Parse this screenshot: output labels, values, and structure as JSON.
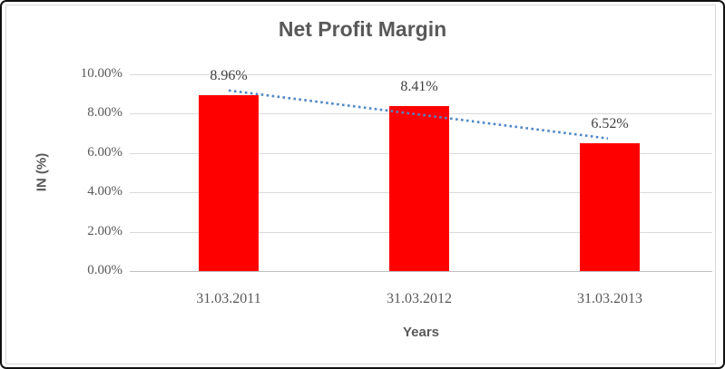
{
  "chart_data": {
    "type": "bar",
    "title": "Net Profit Margin",
    "xlabel": "Years",
    "ylabel": "IN (%)",
    "categories": [
      "31.03.2011",
      "31.03.2012",
      "31.03.2013"
    ],
    "values": [
      8.96,
      8.41,
      6.52
    ],
    "data_labels": [
      "8.96%",
      "8.41%",
      "6.52%"
    ],
    "ylim": [
      0,
      10
    ],
    "ytick_values": [
      0,
      2,
      4,
      6,
      8,
      10
    ],
    "ytick_labels": [
      "0.00%",
      "2.00%",
      "4.00%",
      "6.00%",
      "8.00%",
      "10.00%"
    ],
    "grid": true,
    "legend": false,
    "colors": {
      "bar": "#ff0000",
      "gridline": "#d9d9d9",
      "axis_line": "#bfbfbf",
      "title_text": "#595959",
      "tick_text": "#595959",
      "data_label_text": "#404040",
      "trendline": "#4e87c8"
    },
    "trendline": {
      "type": "linear",
      "style": "dotted",
      "start_value": 9.18,
      "end_value": 6.74
    }
  }
}
